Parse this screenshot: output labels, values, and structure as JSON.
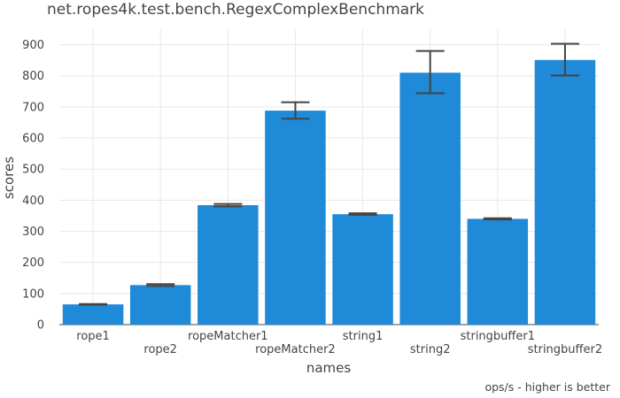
{
  "chart_data": {
    "type": "bar",
    "title": "net.ropes4k.test.bench.RegexComplexBenchmark",
    "xlabel": "names",
    "ylabel": "scores",
    "annotation": "ops/s - higher is better",
    "categories": [
      "rope1",
      "rope2",
      "ropeMatcher1",
      "ropeMatcher2",
      "string1",
      "string2",
      "stringbuffer1",
      "stringbuffer2"
    ],
    "values": [
      65,
      127,
      384,
      688,
      355,
      810,
      340,
      851
    ],
    "error_low": [
      64,
      124,
      380,
      662,
      353,
      744,
      338,
      801
    ],
    "error_high": [
      66,
      130,
      388,
      715,
      358,
      880,
      342,
      903
    ],
    "ylim": [
      0,
      950
    ],
    "yticks": [
      0,
      100,
      200,
      300,
      400,
      500,
      600,
      700,
      800,
      900
    ],
    "grid": true,
    "colors": {
      "bar": "#1f8ad8",
      "error_bar": "#444444",
      "grid": "#e8e8e8",
      "text": "#444444"
    }
  }
}
